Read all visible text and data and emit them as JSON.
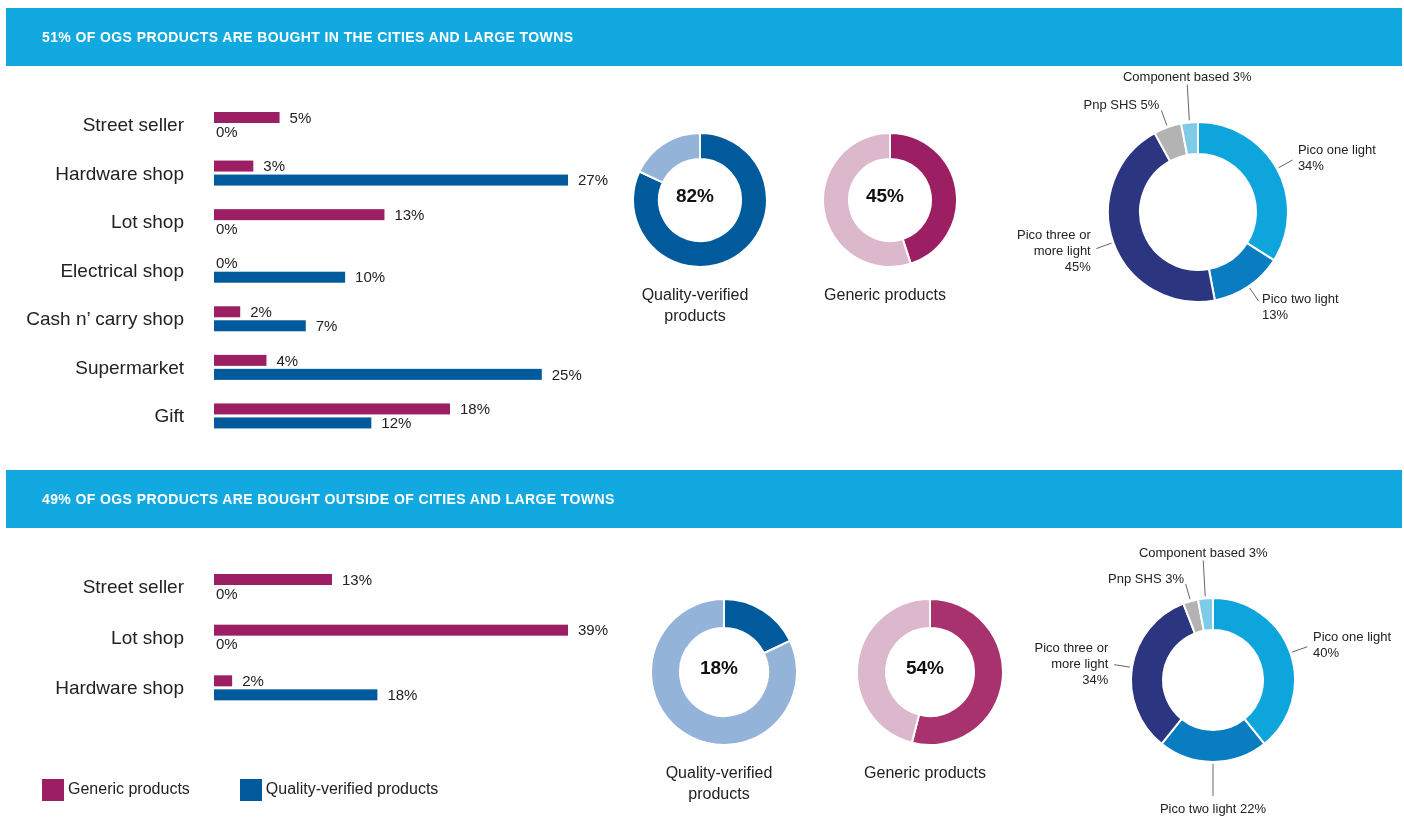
{
  "chart_data": [
    {
      "type": "bar",
      "orientation": "horizontal",
      "title": "51% OF OGS PRODUCTS ARE BOUGHT IN THE CITIES AND LARGE TOWNS",
      "categories": [
        "Street seller",
        "Hardware shop",
        "Lot shop",
        "Electrical shop",
        "Cash n’ carry shop",
        "Supermarket",
        "Gift"
      ],
      "series": [
        {
          "color": "#9b1f62",
          "values": [
            5,
            3,
            13,
            0,
            2,
            4,
            18
          ],
          "value_labels": [
            "5%",
            "3%",
            "13%",
            "0%",
            "2%",
            "4%",
            "18%"
          ]
        },
        {
          "color": "#005a9c",
          "values": [
            0,
            27,
            0,
            10,
            7,
            25,
            12
          ],
          "value_labels": [
            "0%",
            "27%",
            "0%",
            "10%",
            "7%",
            "25%",
            "12%"
          ]
        }
      ],
      "legend": false
    },
    {
      "type": "donut",
      "title": "Quality-verified products",
      "categories": [
        null,
        null
      ],
      "values": [
        82,
        18
      ],
      "colors": [
        "#005a9c",
        "#94b3d9"
      ],
      "annotations": [
        "82%"
      ]
    },
    {
      "type": "donut",
      "title": "Generic products",
      "categories": [
        null,
        null
      ],
      "values": [
        45,
        55
      ],
      "colors": [
        "#9b1f62",
        "#dbb8cb"
      ],
      "annotations": [
        "45%"
      ]
    },
    {
      "type": "donut",
      "categories": [
        "Pico one light",
        "Pico two light",
        "Pico three or more light",
        "Pnp SHS",
        "Component based"
      ],
      "values": [
        34,
        13,
        45,
        5,
        3
      ],
      "value_labels": [
        "34%",
        "13%",
        "45%",
        "5%",
        "3%"
      ],
      "colors": [
        "#0ea5dd",
        "#0a7cc1",
        "#2b3580",
        "#b3b3b3",
        "#7dcbe6"
      ]
    },
    {
      "type": "bar",
      "orientation": "horizontal",
      "title": "49% OF OGS PRODUCTS ARE BOUGHT OUTSIDE OF CITIES AND LARGE TOWNS",
      "categories": [
        "Street seller",
        "Lot shop",
        "Hardware shop"
      ],
      "series": [
        {
          "name": "Generic products",
          "color": "#9b1f62",
          "values": [
            13,
            39,
            2
          ],
          "value_labels": [
            "13%",
            "39%",
            "2%"
          ]
        },
        {
          "name": "Quality-verified products",
          "color": "#005a9c",
          "values": [
            0,
            0,
            18
          ],
          "value_labels": [
            "0%",
            "0%",
            "18%"
          ]
        }
      ],
      "legend": "bottom"
    },
    {
      "type": "donut",
      "title": "Quality-verified products",
      "categories": [
        null,
        null
      ],
      "values": [
        18,
        82
      ],
      "colors": [
        "#005a9c",
        "#94b3d9"
      ],
      "annotations": [
        "18%"
      ]
    },
    {
      "type": "donut",
      "title": "Generic products",
      "categories": [
        null,
        null
      ],
      "values": [
        54,
        46
      ],
      "colors": [
        "#a8326e",
        "#dbb8cb"
      ],
      "annotations": [
        "54%"
      ]
    },
    {
      "type": "donut",
      "categories": [
        "Pico one light",
        "Pico two light",
        "Pico three or more light",
        "Pnp SHS",
        "Component based"
      ],
      "values": [
        40,
        22,
        34,
        3,
        3
      ],
      "value_labels": [
        "40%",
        "22%",
        "34%",
        "3%",
        "3%"
      ],
      "colors": [
        "#0ea5dd",
        "#0a7cc1",
        "#2b3580",
        "#b3b3b3",
        "#7dcbe6"
      ]
    }
  ]
}
